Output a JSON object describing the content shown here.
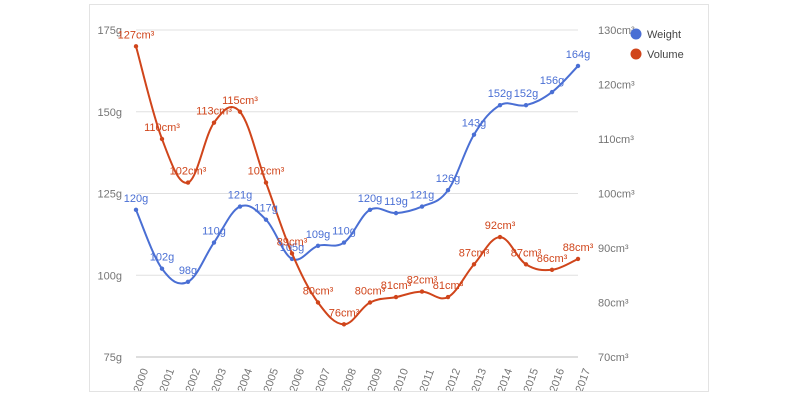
{
  "chart_data": {
    "type": "line",
    "categories": [
      "2000",
      "2001",
      "2002",
      "2003",
      "2004",
      "2005",
      "2006",
      "2007",
      "2008",
      "2009",
      "2010",
      "2011",
      "2012",
      "2013",
      "2014",
      "2015",
      "2016",
      "2017"
    ],
    "series": [
      {
        "name": "Weight",
        "axis": "left",
        "color": "#4a6fd4",
        "values": [
          120,
          102,
          98,
          110,
          121,
          117,
          105,
          109,
          110,
          120,
          119,
          121,
          126,
          143,
          152,
          152,
          156,
          164
        ],
        "labels": [
          "120g",
          "102g",
          "98g",
          "110g",
          "121g",
          "117g",
          "105g",
          "109g",
          "110g",
          "120g",
          "119g",
          "121g",
          "126g",
          "143g",
          "152g",
          "152g",
          "156g",
          "164g"
        ]
      },
      {
        "name": "Volume",
        "axis": "right",
        "color": "#d0451b",
        "values": [
          127,
          110,
          102,
          113,
          115,
          102,
          89,
          80,
          76,
          80,
          81,
          82,
          81,
          87,
          92,
          87,
          86,
          88
        ],
        "labels": [
          "127cm³",
          "110cm³",
          "102cm³",
          "113cm³",
          "115cm³",
          "102cm³",
          "89cm³",
          "80cm³",
          "76cm³",
          "80cm³",
          "81cm³",
          "82cm³",
          "81cm³",
          "87cm³",
          "92cm³",
          "87cm³",
          "86cm³",
          "88cm³"
        ]
      }
    ],
    "left_axis": {
      "ylim": [
        75,
        175
      ],
      "ticks": [
        75,
        100,
        125,
        150,
        175
      ],
      "tick_labels": [
        "75g",
        "100g",
        "125g",
        "150g",
        "175g"
      ]
    },
    "right_axis": {
      "ylim": [
        70,
        130
      ],
      "ticks": [
        70,
        80,
        90,
        100,
        110,
        120,
        130
      ],
      "tick_labels": [
        "70cm³",
        "80cm³",
        "90cm³",
        "100cm³",
        "110cm³",
        "120cm³",
        "130cm³"
      ]
    },
    "grid": true,
    "legend_position": "top-right",
    "title": "",
    "xlabel": "",
    "ylabel": ""
  }
}
